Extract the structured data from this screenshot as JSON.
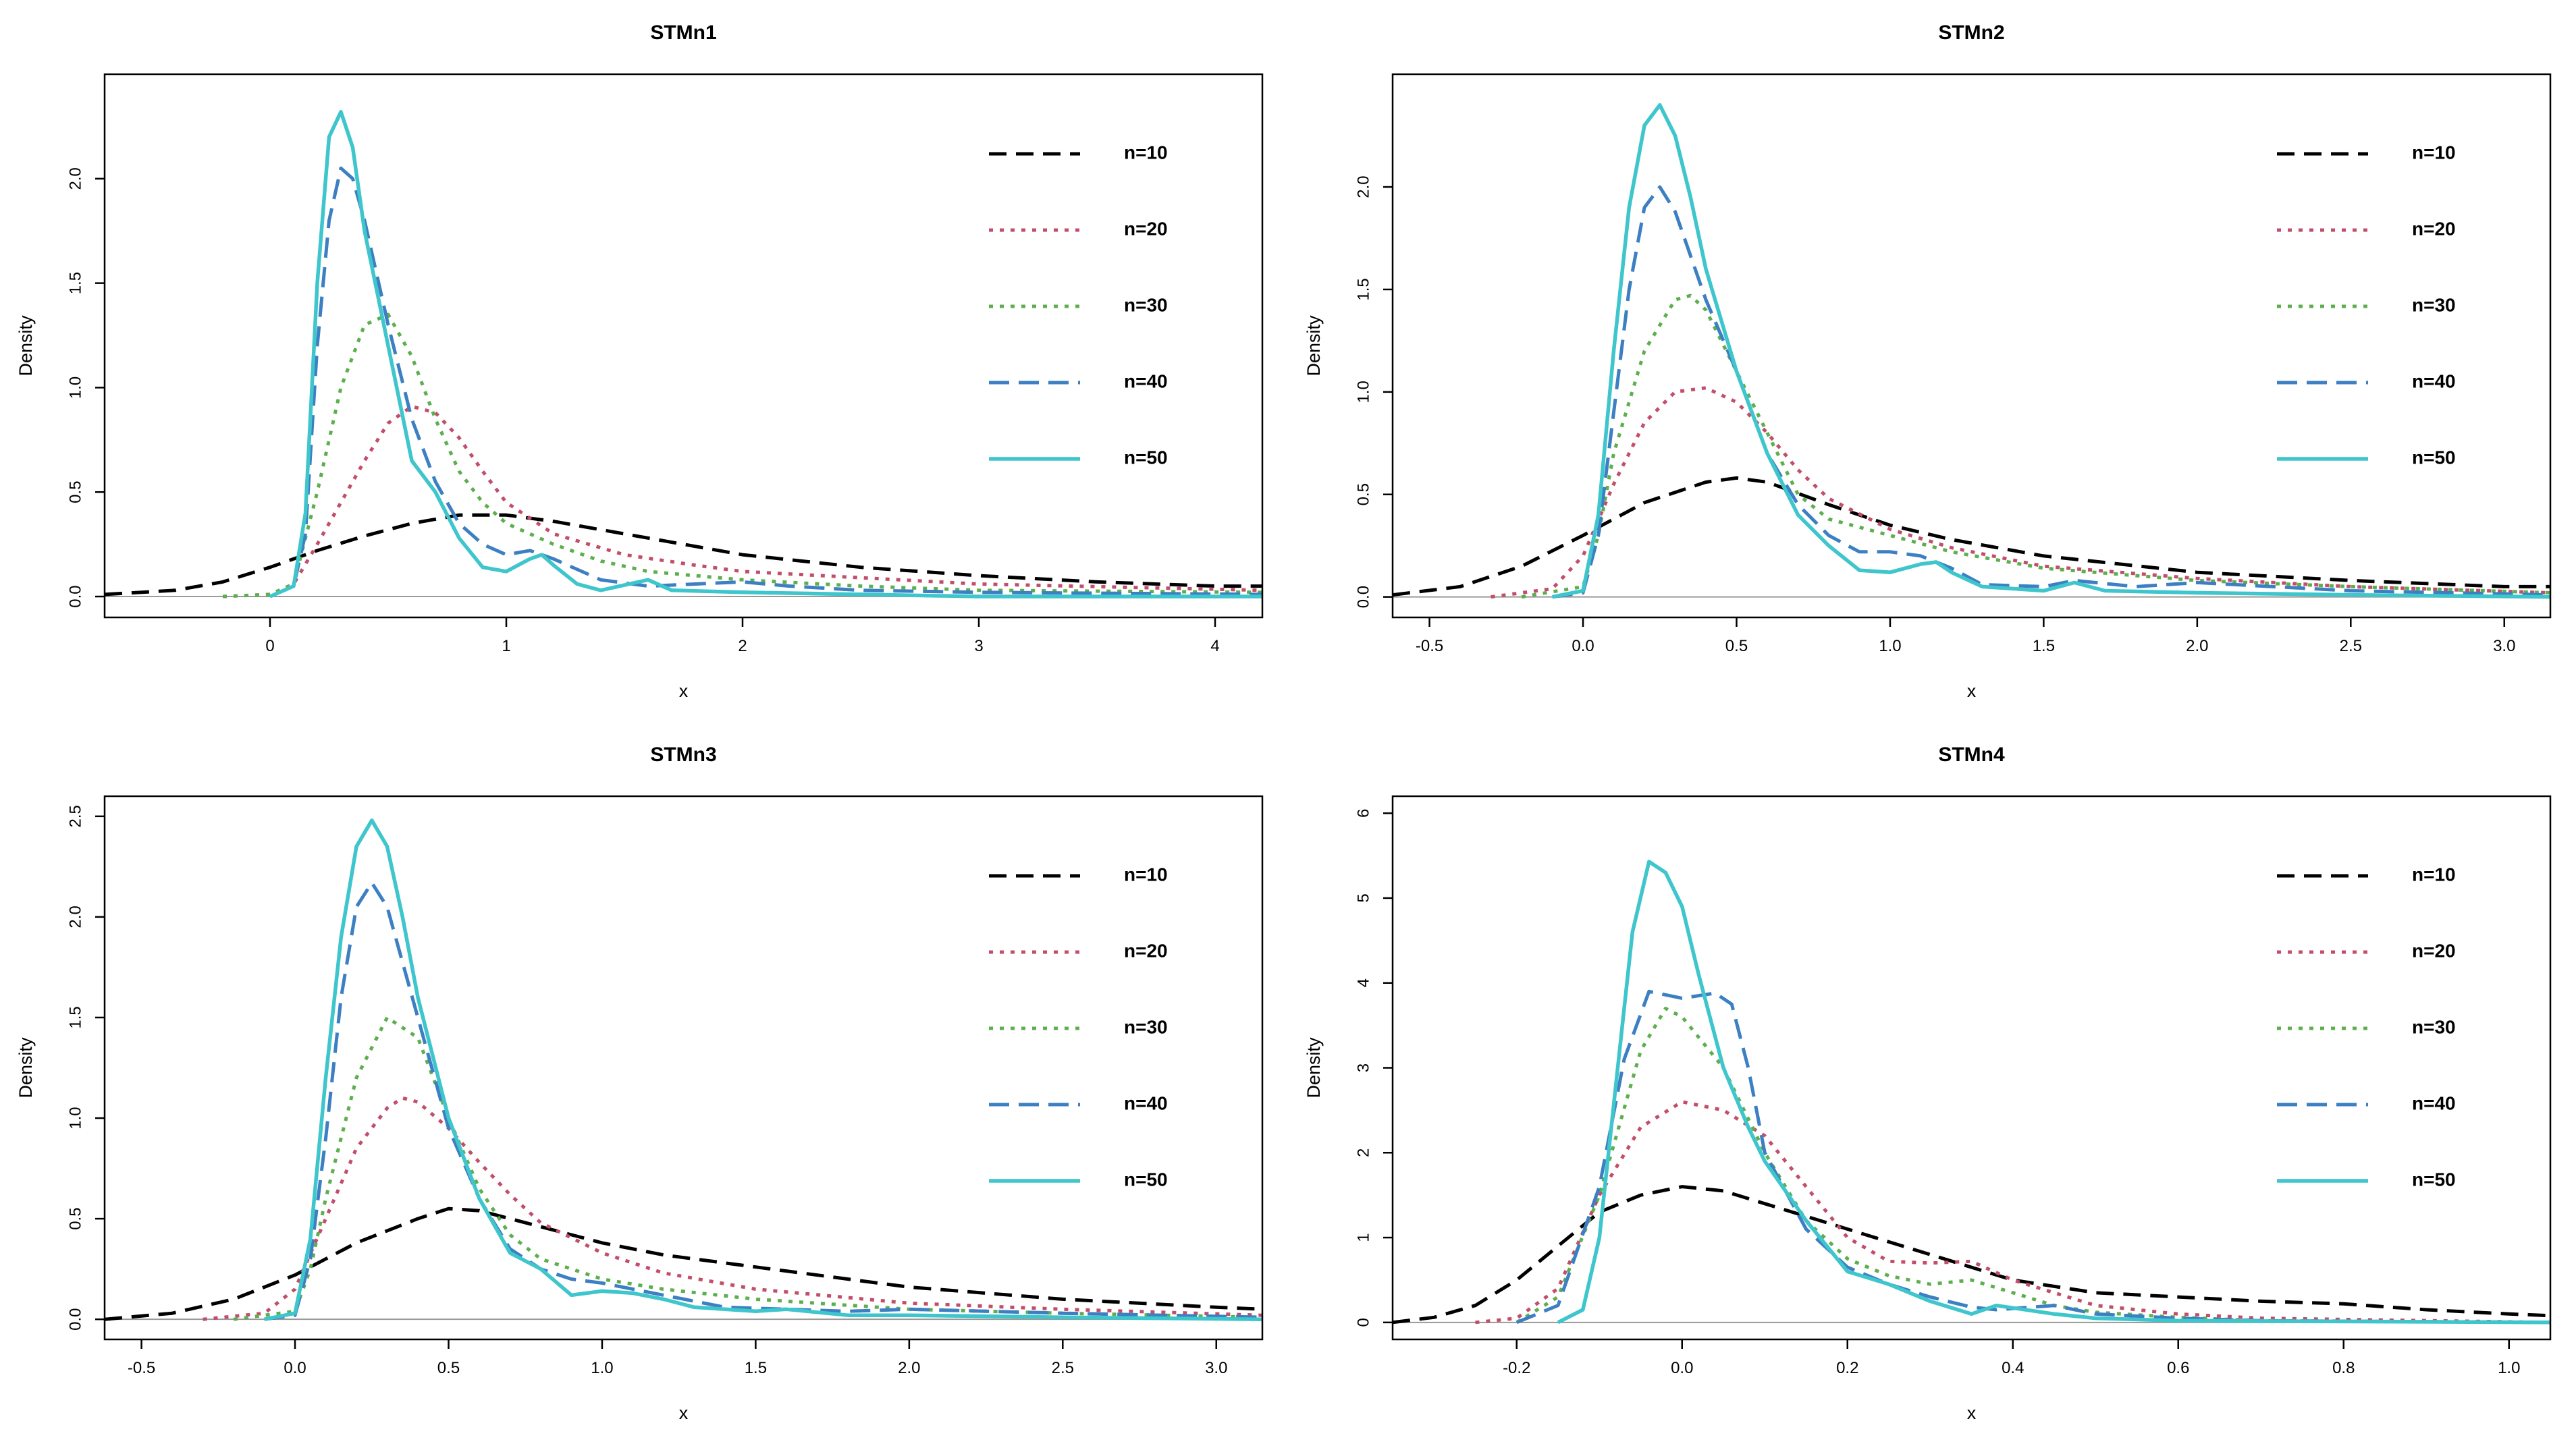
{
  "colors": {
    "n10": "#000000",
    "n20": "#C24E6A",
    "n30": "#5DAF4E",
    "n40": "#3C7FC2",
    "n50": "#3EC6CC",
    "frame": "#000000",
    "baseline": "#9a9a9a"
  },
  "chart_data": [
    {
      "type": "line",
      "title": "STMn1",
      "xlabel": "x",
      "ylabel": "Density",
      "xlim": [
        -0.7,
        4.2
      ],
      "ylim": [
        -0.1,
        2.5
      ],
      "xticks": [
        0,
        1,
        2,
        3,
        4
      ],
      "xtick_labels": [
        "0",
        "1",
        "2",
        "3",
        "4"
      ],
      "yticks": [
        0,
        0.5,
        1,
        1.5,
        2
      ],
      "ytick_labels": [
        "0.0",
        "0.5",
        "1.0",
        "1.5",
        "2.0"
      ],
      "legend_position": "top-right",
      "grid": false,
      "series": [
        {
          "name": "n=10",
          "x": [
            -0.7,
            -0.4,
            -0.2,
            0,
            0.2,
            0.4,
            0.6,
            0.8,
            1,
            1.2,
            1.5,
            2,
            2.5,
            3,
            3.5,
            4,
            4.2
          ],
          "y": [
            0.01,
            0.03,
            0.07,
            0.14,
            0.22,
            0.29,
            0.35,
            0.39,
            0.39,
            0.36,
            0.3,
            0.2,
            0.14,
            0.1,
            0.07,
            0.05,
            0.05
          ]
        },
        {
          "name": "n=20",
          "x": [
            -0.2,
            0,
            0.1,
            0.2,
            0.3,
            0.4,
            0.5,
            0.6,
            0.7,
            0.8,
            0.9,
            1,
            1.2,
            1.5,
            1.8,
            2,
            2.5,
            3,
            4.2
          ],
          "y": [
            0,
            0.01,
            0.06,
            0.25,
            0.45,
            0.65,
            0.83,
            0.91,
            0.88,
            0.76,
            0.6,
            0.45,
            0.3,
            0.2,
            0.15,
            0.12,
            0.09,
            0.06,
            0.03
          ]
        },
        {
          "name": "n=30",
          "x": [
            -0.2,
            0,
            0.1,
            0.2,
            0.3,
            0.4,
            0.5,
            0.6,
            0.7,
            0.8,
            0.9,
            1,
            1.2,
            1.4,
            1.6,
            2,
            2.5,
            3,
            4.2
          ],
          "y": [
            0,
            0.01,
            0.06,
            0.5,
            1.0,
            1.3,
            1.35,
            1.15,
            0.85,
            0.6,
            0.45,
            0.35,
            0.25,
            0.17,
            0.12,
            0.08,
            0.05,
            0.03,
            0.02
          ]
        },
        {
          "name": "n=40",
          "x": [
            0,
            0.1,
            0.15,
            0.2,
            0.25,
            0.3,
            0.35,
            0.4,
            0.5,
            0.6,
            0.7,
            0.8,
            0.9,
            1,
            1.1,
            1.2,
            1.4,
            1.6,
            1.8,
            2,
            2.2,
            2.5,
            3,
            4.2
          ],
          "y": [
            0,
            0.05,
            0.3,
            1.2,
            1.8,
            2.05,
            2.0,
            1.8,
            1.3,
            0.85,
            0.55,
            0.35,
            0.25,
            0.2,
            0.22,
            0.18,
            0.08,
            0.05,
            0.06,
            0.07,
            0.05,
            0.03,
            0.02,
            0.01
          ]
        },
        {
          "name": "n=50",
          "x": [
            0,
            0.1,
            0.15,
            0.2,
            0.25,
            0.3,
            0.35,
            0.4,
            0.5,
            0.6,
            0.7,
            0.8,
            0.9,
            1,
            1.1,
            1.15,
            1.2,
            1.3,
            1.4,
            1.6,
            1.7,
            2,
            2.5,
            3,
            4.2
          ],
          "y": [
            0,
            0.05,
            0.4,
            1.5,
            2.2,
            2.32,
            2.15,
            1.75,
            1.2,
            0.65,
            0.5,
            0.28,
            0.14,
            0.12,
            0.18,
            0.2,
            0.15,
            0.06,
            0.03,
            0.08,
            0.03,
            0.02,
            0.01,
            0,
            0
          ]
        }
      ]
    },
    {
      "type": "line",
      "title": "STMn2",
      "xlabel": "x",
      "ylabel": "Density",
      "xlim": [
        -0.62,
        3.15
      ],
      "ylim": [
        -0.1,
        2.55
      ],
      "xticks": [
        -0.5,
        0,
        0.5,
        1,
        1.5,
        2,
        2.5,
        3
      ],
      "xtick_labels": [
        "-0.5",
        "0.0",
        "0.5",
        "1.0",
        "1.5",
        "2.0",
        "2.5",
        "3.0"
      ],
      "yticks": [
        0,
        0.5,
        1,
        1.5,
        2
      ],
      "ytick_labels": [
        "0.0",
        "0.5",
        "1.0",
        "1.5",
        "2.0"
      ],
      "legend_position": "top-right",
      "grid": false,
      "series": [
        {
          "name": "n=10",
          "x": [
            -0.62,
            -0.4,
            -0.2,
            0,
            0.2,
            0.4,
            0.5,
            0.6,
            0.8,
            1,
            1.2,
            1.5,
            2,
            2.5,
            3,
            3.15
          ],
          "y": [
            0.01,
            0.05,
            0.15,
            0.3,
            0.46,
            0.56,
            0.58,
            0.56,
            0.45,
            0.35,
            0.28,
            0.2,
            0.12,
            0.08,
            0.05,
            0.05
          ]
        },
        {
          "name": "n=20",
          "x": [
            -0.3,
            -0.1,
            0,
            0.1,
            0.2,
            0.3,
            0.4,
            0.5,
            0.6,
            0.7,
            0.8,
            1,
            1.2,
            1.5,
            2,
            2.5,
            3.15
          ],
          "y": [
            0,
            0.04,
            0.2,
            0.55,
            0.85,
            1.0,
            1.02,
            0.95,
            0.8,
            0.62,
            0.48,
            0.33,
            0.24,
            0.15,
            0.09,
            0.05,
            0.02
          ]
        },
        {
          "name": "n=30",
          "x": [
            -0.2,
            0,
            0.05,
            0.1,
            0.2,
            0.3,
            0.35,
            0.4,
            0.5,
            0.6,
            0.7,
            0.8,
            1,
            1.2,
            1.5,
            2,
            2.5,
            3.15
          ],
          "y": [
            0,
            0.05,
            0.3,
            0.7,
            1.2,
            1.45,
            1.47,
            1.4,
            1.1,
            0.8,
            0.5,
            0.38,
            0.3,
            0.22,
            0.14,
            0.08,
            0.05,
            0.02
          ]
        },
        {
          "name": "n=40",
          "x": [
            -0.1,
            0,
            0.05,
            0.1,
            0.15,
            0.2,
            0.25,
            0.3,
            0.4,
            0.5,
            0.6,
            0.7,
            0.8,
            0.9,
            1,
            1.1,
            1.2,
            1.3,
            1.5,
            1.6,
            1.8,
            2,
            2.5,
            3.15
          ],
          "y": [
            0,
            0.02,
            0.3,
            0.9,
            1.5,
            1.9,
            2.0,
            1.88,
            1.45,
            1.1,
            0.7,
            0.45,
            0.3,
            0.22,
            0.22,
            0.2,
            0.14,
            0.06,
            0.05,
            0.08,
            0.05,
            0.07,
            0.03,
            0.01
          ]
        },
        {
          "name": "n=50",
          "x": [
            -0.1,
            0,
            0.05,
            0.1,
            0.15,
            0.2,
            0.25,
            0.3,
            0.35,
            0.4,
            0.5,
            0.6,
            0.7,
            0.8,
            0.9,
            1,
            1.1,
            1.15,
            1.2,
            1.3,
            1.5,
            1.6,
            1.7,
            2,
            2.5,
            3.15
          ],
          "y": [
            0,
            0.03,
            0.4,
            1.2,
            1.9,
            2.3,
            2.4,
            2.25,
            1.95,
            1.6,
            1.1,
            0.7,
            0.4,
            0.25,
            0.13,
            0.12,
            0.16,
            0.17,
            0.12,
            0.05,
            0.03,
            0.07,
            0.03,
            0.02,
            0.01,
            0
          ]
        }
      ]
    },
    {
      "type": "line",
      "title": "STMn3",
      "xlabel": "x",
      "ylabel": "Density",
      "xlim": [
        -0.62,
        3.15
      ],
      "ylim": [
        -0.1,
        2.6
      ],
      "xticks": [
        -0.5,
        0,
        0.5,
        1,
        1.5,
        2,
        2.5,
        3
      ],
      "xtick_labels": [
        "-0.5",
        "0.0",
        "0.5",
        "1.0",
        "1.5",
        "2.0",
        "2.5",
        "3.0"
      ],
      "yticks": [
        0,
        0.5,
        1,
        1.5,
        2,
        2.5
      ],
      "ytick_labels": [
        "0.0",
        "0.5",
        "1.0",
        "1.5",
        "2.0",
        "2.5"
      ],
      "legend_position": "top-right",
      "grid": false,
      "series": [
        {
          "name": "n=10",
          "x": [
            -0.62,
            -0.4,
            -0.2,
            0,
            0.2,
            0.4,
            0.5,
            0.6,
            0.8,
            1,
            1.2,
            1.5,
            2,
            2.5,
            3,
            3.15
          ],
          "y": [
            0,
            0.03,
            0.1,
            0.22,
            0.38,
            0.5,
            0.55,
            0.54,
            0.46,
            0.38,
            0.32,
            0.26,
            0.16,
            0.1,
            0.06,
            0.05
          ]
        },
        {
          "name": "n=20",
          "x": [
            -0.3,
            -0.1,
            0,
            0.1,
            0.2,
            0.3,
            0.35,
            0.4,
            0.5,
            0.6,
            0.7,
            0.8,
            1,
            1.2,
            1.5,
            2,
            2.5,
            3.15
          ],
          "y": [
            0,
            0.03,
            0.15,
            0.5,
            0.85,
            1.05,
            1.1,
            1.08,
            0.95,
            0.78,
            0.62,
            0.48,
            0.33,
            0.23,
            0.15,
            0.08,
            0.05,
            0.02
          ]
        },
        {
          "name": "n=30",
          "x": [
            -0.2,
            0,
            0.05,
            0.1,
            0.2,
            0.3,
            0.4,
            0.5,
            0.6,
            0.7,
            0.8,
            1,
            1.2,
            1.5,
            2,
            2.5,
            3.15
          ],
          "y": [
            0,
            0.04,
            0.25,
            0.6,
            1.2,
            1.5,
            1.4,
            1.0,
            0.65,
            0.42,
            0.3,
            0.2,
            0.15,
            0.1,
            0.05,
            0.03,
            0.01
          ]
        },
        {
          "name": "n=40",
          "x": [
            -0.1,
            0,
            0.05,
            0.1,
            0.15,
            0.2,
            0.25,
            0.3,
            0.4,
            0.5,
            0.6,
            0.7,
            0.8,
            0.9,
            1,
            1.2,
            1.4,
            1.6,
            1.8,
            2,
            2.5,
            3.15
          ],
          "y": [
            0,
            0.02,
            0.3,
            0.9,
            1.6,
            2.05,
            2.17,
            2.05,
            1.5,
            0.95,
            0.6,
            0.35,
            0.25,
            0.2,
            0.18,
            0.12,
            0.06,
            0.05,
            0.04,
            0.05,
            0.03,
            0.01
          ]
        },
        {
          "name": "n=50",
          "x": [
            -0.1,
            0,
            0.05,
            0.1,
            0.15,
            0.2,
            0.25,
            0.3,
            0.35,
            0.4,
            0.5,
            0.6,
            0.7,
            0.8,
            0.9,
            1,
            1.1,
            1.2,
            1.3,
            1.5,
            1.6,
            1.8,
            2,
            2.5,
            3.15
          ],
          "y": [
            0,
            0.03,
            0.4,
            1.2,
            1.9,
            2.35,
            2.48,
            2.35,
            2.0,
            1.6,
            1.0,
            0.6,
            0.33,
            0.25,
            0.12,
            0.14,
            0.13,
            0.1,
            0.06,
            0.04,
            0.05,
            0.02,
            0.02,
            0.01,
            0
          ]
        }
      ]
    },
    {
      "type": "line",
      "title": "STMn4",
      "xlabel": "x",
      "ylabel": "Density",
      "xlim": [
        -0.35,
        1.05
      ],
      "ylim": [
        -0.2,
        6.2
      ],
      "xticks": [
        -0.2,
        0,
        0.2,
        0.4,
        0.6,
        0.8,
        1
      ],
      "xtick_labels": [
        "-0.2",
        "0.0",
        "0.2",
        "0.4",
        "0.6",
        "0.8",
        "1.0"
      ],
      "yticks": [
        0,
        1,
        2,
        3,
        4,
        5,
        6
      ],
      "ytick_labels": [
        "0",
        "1",
        "2",
        "3",
        "4",
        "5",
        "6"
      ],
      "legend_position": "top-right",
      "grid": false,
      "series": [
        {
          "name": "n=10",
          "x": [
            -0.35,
            -0.3,
            -0.25,
            -0.2,
            -0.15,
            -0.1,
            -0.05,
            0,
            0.05,
            0.1,
            0.15,
            0.2,
            0.25,
            0.3,
            0.35,
            0.4,
            0.5,
            0.6,
            0.7,
            0.8,
            0.9,
            1,
            1.05
          ],
          "y": [
            0,
            0.06,
            0.2,
            0.5,
            0.9,
            1.3,
            1.5,
            1.6,
            1.55,
            1.4,
            1.25,
            1.1,
            0.95,
            0.8,
            0.65,
            0.5,
            0.35,
            0.3,
            0.25,
            0.22,
            0.15,
            0.1,
            0.08
          ]
        },
        {
          "name": "n=20",
          "x": [
            -0.25,
            -0.2,
            -0.15,
            -0.1,
            -0.05,
            0,
            0.05,
            0.1,
            0.15,
            0.2,
            0.25,
            0.3,
            0.35,
            0.4,
            0.5,
            0.6,
            0.7,
            1.05
          ],
          "y": [
            0,
            0.05,
            0.4,
            1.5,
            2.3,
            2.6,
            2.5,
            2.2,
            1.6,
            1.0,
            0.72,
            0.7,
            0.72,
            0.5,
            0.2,
            0.1,
            0.05,
            0
          ]
        },
        {
          "name": "n=30",
          "x": [
            -0.2,
            -0.15,
            -0.1,
            -0.05,
            -0.02,
            0,
            0.05,
            0.1,
            0.15,
            0.2,
            0.25,
            0.3,
            0.35,
            0.4,
            0.45,
            0.5,
            0.6,
            0.7,
            1.05
          ],
          "y": [
            0,
            0.3,
            1.5,
            3.2,
            3.7,
            3.6,
            3.0,
            2.0,
            1.2,
            0.75,
            0.55,
            0.45,
            0.5,
            0.35,
            0.2,
            0.12,
            0.06,
            0.02,
            0
          ]
        },
        {
          "name": "n=40",
          "x": [
            -0.2,
            -0.15,
            -0.1,
            -0.07,
            -0.04,
            0,
            0.04,
            0.06,
            0.08,
            0.1,
            0.15,
            0.2,
            0.25,
            0.3,
            0.35,
            0.38,
            0.45,
            0.5,
            0.6,
            0.7,
            1.05
          ],
          "y": [
            0,
            0.2,
            1.6,
            3.1,
            3.9,
            3.82,
            3.88,
            3.75,
            3.0,
            2.0,
            1.1,
            0.65,
            0.45,
            0.3,
            0.18,
            0.15,
            0.2,
            0.1,
            0.05,
            0.02,
            0
          ]
        },
        {
          "name": "n=50",
          "x": [
            -0.15,
            -0.12,
            -0.1,
            -0.08,
            -0.06,
            -0.04,
            -0.02,
            0,
            0.02,
            0.05,
            0.08,
            0.1,
            0.15,
            0.2,
            0.25,
            0.3,
            0.35,
            0.38,
            0.45,
            0.5,
            0.6,
            1.05
          ],
          "y": [
            0,
            0.15,
            1.0,
            2.8,
            4.6,
            5.43,
            5.3,
            4.9,
            4.1,
            3.0,
            2.3,
            1.9,
            1.2,
            0.6,
            0.45,
            0.25,
            0.1,
            0.2,
            0.1,
            0.05,
            0.02,
            0
          ]
        }
      ]
    }
  ]
}
